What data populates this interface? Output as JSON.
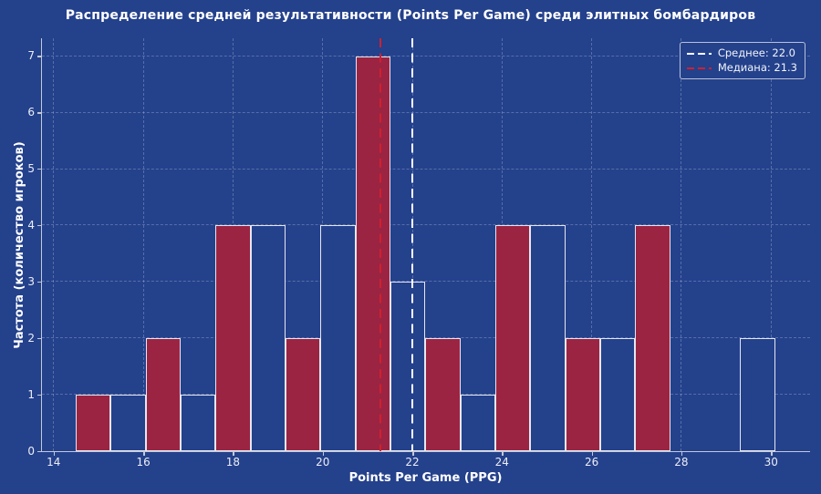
{
  "title": "Распределение средней результативности (Points Per Game) среди элитных бомбардиров",
  "axes": {
    "xlabel": "Points Per Game (PPG)",
    "ylabel": "Частота (количество игроков)"
  },
  "legend": {
    "items": [
      {
        "label": "Среднее: 22.0",
        "color": "#FFFFFF"
      },
      {
        "label": "Медиана: 21.3",
        "color": "#CF2030"
      }
    ]
  },
  "chart_data": {
    "type": "bar",
    "subtype": "histogram",
    "title": "Распределение средней результативности (Points Per Game) среди элитных бомбардиров",
    "xlabel": "Points Per Game (PPG)",
    "ylabel": "Частота (количество игроков)",
    "bin_start": 14.5,
    "bin_width": 0.78,
    "frequencies": [
      1,
      1,
      2,
      1,
      4,
      4,
      2,
      4,
      7,
      3,
      2,
      1,
      4,
      4,
      2,
      2,
      4,
      0,
      0,
      2
    ],
    "bar_styles": [
      "crimson",
      "navy",
      "crimson",
      "navy",
      "crimson",
      "navy",
      "crimson",
      "navy",
      "crimson",
      "navy",
      "crimson",
      "navy",
      "crimson",
      "navy",
      "crimson",
      "navy",
      "crimson",
      "navy",
      "crimson",
      "navy"
    ],
    "total_players": 50,
    "mean": 22.0,
    "median": 21.3,
    "mean_label": "Среднее: 22.0",
    "median_label": "Медиана: 21.3",
    "x_ticks": [
      14,
      16,
      18,
      20,
      22,
      24,
      26,
      28,
      30
    ],
    "y_ticks": [
      0,
      1,
      2,
      3,
      4,
      5,
      6,
      7
    ],
    "xlim": [
      13.75,
      30.87
    ],
    "ylim": [
      0,
      7.31
    ],
    "grid": true,
    "legend_position": "upper right",
    "colors": {
      "background": "#24418C",
      "bar_fill": "#9B2442",
      "bar_fill_alt": "#24418C",
      "bar_edge": "#E4E7F0",
      "mean_line": "#FFFFFF",
      "median_line": "#CF2030",
      "grid_line": "rgba(205,214,233,0.30)",
      "spine": "#C3C9D8",
      "tick_text": "#ECEEF5",
      "label_text": "#FFFFFF"
    }
  }
}
